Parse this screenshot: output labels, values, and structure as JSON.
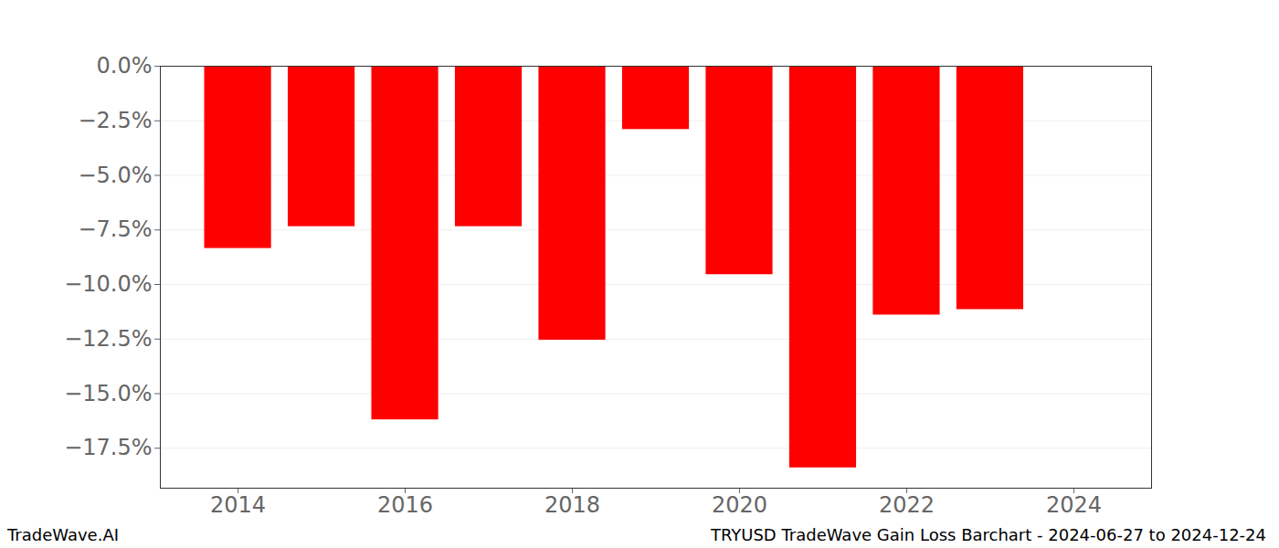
{
  "chart_data": {
    "type": "bar",
    "title": "TRYUSD TradeWave Gain Loss Barchart - 2024-06-27 to 2024-12-24",
    "watermark": "TradeWave.AI",
    "x": [
      2014,
      2015,
      2016,
      2017,
      2018,
      2019,
      2020,
      2021,
      2022,
      2023
    ],
    "values": [
      -8.35,
      -7.35,
      -16.2,
      -7.35,
      -12.55,
      -2.9,
      -9.55,
      -18.4,
      -11.4,
      -11.15
    ],
    "color": "#ff0000",
    "xlim": [
      2013.07,
      2024.93
    ],
    "xticks": [
      2014,
      2016,
      2018,
      2020,
      2022,
      2024
    ],
    "ylim": [
      -19.33,
      0
    ],
    "yticks": [
      {
        "value": 0,
        "label": "0.0%"
      },
      {
        "value": -2.5,
        "label": "−2.5%"
      },
      {
        "value": -5,
        "label": "−5.0%"
      },
      {
        "value": -7.5,
        "label": "−7.5%"
      },
      {
        "value": -10,
        "label": "−10.0%"
      },
      {
        "value": -12.5,
        "label": "−12.5%"
      },
      {
        "value": -15,
        "label": "−15.0%"
      },
      {
        "value": -17.5,
        "label": "−17.5%"
      }
    ],
    "grid": true
  }
}
